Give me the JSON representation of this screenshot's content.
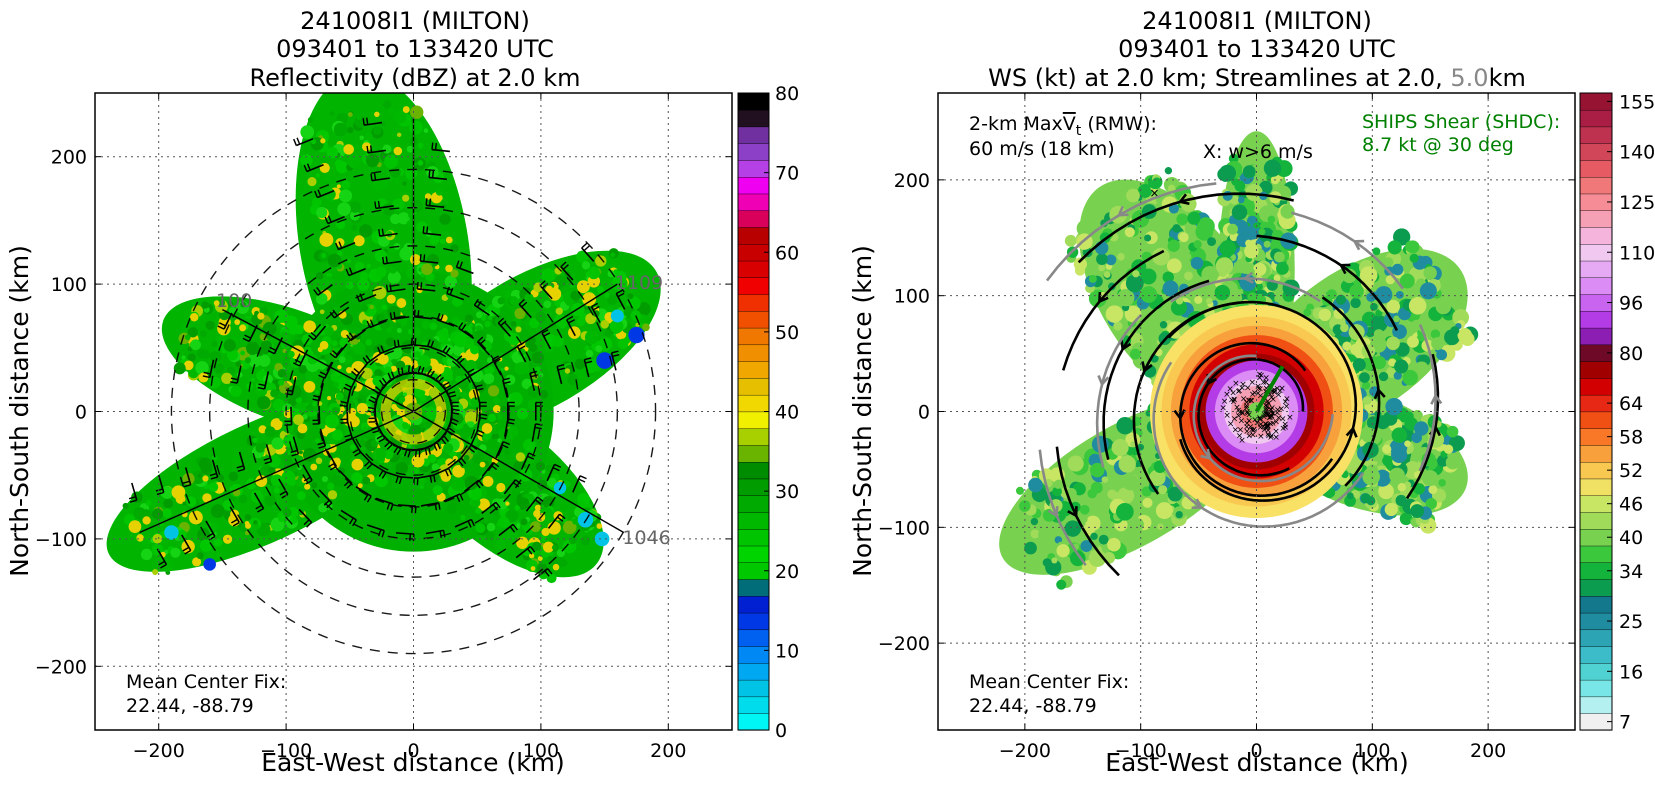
{
  "panels": [
    {
      "id": "reflectivity",
      "title_lines": [
        "241008I1 (MILTON)",
        "093401 to 133420 UTC",
        "Reflectivity (dBZ) at 2.0 km"
      ],
      "xlabel": "East-West distance (km)",
      "ylabel": "North-South distance (km)",
      "xlim": [
        -250,
        250
      ],
      "ylim": [
        -250,
        250
      ],
      "xticks": [
        -200,
        -100,
        0,
        100,
        200
      ],
      "yticks": [
        -200,
        -100,
        0,
        100,
        200
      ],
      "xtick_labels": [
        "−200",
        "−100",
        "0",
        "100",
        "200"
      ],
      "ytick_labels": [
        "−200",
        "−100",
        "0",
        "100",
        "200"
      ],
      "center_fix_lines": [
        "Mean Center Fix:",
        "22.44, -88.79"
      ],
      "flight_leg_labels": [
        {
          "text": "1109",
          "x": 158,
          "y": 96
        },
        {
          "text": "1046",
          "x": 164,
          "y": -104
        },
        {
          "text": "100",
          "x": -155,
          "y": 82
        }
      ],
      "colorbar": {
        "min": 0,
        "max": 80,
        "step": 2.5,
        "tick_values": [
          0,
          10,
          20,
          30,
          40,
          50,
          60,
          70,
          80
        ],
        "tick_labels": [
          "0",
          "10",
          "20",
          "30",
          "40",
          "50",
          "60",
          "70",
          "80"
        ],
        "colors": [
          "#00f5f5",
          "#00dcec",
          "#00c3e6",
          "#00a8f2",
          "#0088f5",
          "#0060f0",
          "#0038e6",
          "#0020d2",
          "#006d78",
          "#00c800",
          "#00d400",
          "#00c400",
          "#00b800",
          "#00aa00",
          "#009c00",
          "#008c00",
          "#6ab400",
          "#a8d000",
          "#f0f000",
          "#f0d800",
          "#e6c000",
          "#f0a800",
          "#f09000",
          "#f07800",
          "#f05000",
          "#f03000",
          "#f00000",
          "#d80000",
          "#c80000",
          "#b80000",
          "#d8005a",
          "#f000b4",
          "#f000f0",
          "#b440e6",
          "#8c40c8",
          "#7030a0",
          "#201020",
          "#000000"
        ]
      }
    },
    {
      "id": "windspeed",
      "title_lines": [
        "241008I1 (MILTON)",
        "093401 to 133420 UTC",
        "WS (kt) at 2.0 km; Streamlines at 2.0, 5.0km"
      ],
      "title_parts": {
        "prefix": "WS (kt) at 2.0 km; Streamlines at 2.0, ",
        "gray": "5.0",
        "suffix": "km"
      },
      "xlabel": "East-West distance (km)",
      "ylabel": "North-South distance (km)",
      "xlim": [
        -275,
        275
      ],
      "ylim": [
        -275,
        275
      ],
      "xticks": [
        -200,
        -100,
        0,
        100,
        200
      ],
      "yticks": [
        -200,
        -100,
        0,
        100,
        200
      ],
      "xtick_labels": [
        "−200",
        "−100",
        "0",
        "100",
        "200"
      ],
      "ytick_labels": [
        "−200",
        "−100",
        "0",
        "100",
        "200"
      ],
      "center_fix_lines": [
        "Mean Center Fix:",
        "22.44, -88.79"
      ],
      "maxvt_lines": [
        "2-km MaxV̅t (RMW):",
        "60 m/s (18 km)"
      ],
      "maxvt_line1_parts": {
        "prefix": "2-km Max",
        "symbol": "V",
        "subscript": "t",
        "suffix": " (RMW):"
      },
      "x_marker_text": "X: w>6 m/s",
      "ships_lines": [
        "SHIPS Shear (SHDC):",
        "8.7 kt @ 30 deg"
      ],
      "ships_color": "#008000",
      "colorbar": {
        "boundaries": [
          7,
          10,
          13,
          16,
          19,
          22,
          25,
          28,
          31,
          34,
          37,
          40,
          43,
          46,
          49,
          52,
          55,
          58,
          61,
          64,
          70,
          75,
          80,
          86,
          91,
          96,
          101,
          106,
          110,
          115,
          120,
          125,
          130,
          135,
          140,
          145,
          150,
          155,
          160
        ],
        "tick_values": [
          7,
          16,
          25,
          34,
          40,
          46,
          52,
          58,
          64,
          80,
          96,
          110,
          125,
          140,
          155
        ],
        "tick_labels": [
          "7",
          "16",
          "25",
          "34",
          "40",
          "46",
          "52",
          "58",
          "64",
          "80",
          "96",
          "110",
          "125",
          "140",
          "155"
        ],
        "colors": [
          "#f0f0f0",
          "#b4f0f0",
          "#78e6e6",
          "#50d2d2",
          "#3cbcc8",
          "#2ca4b4",
          "#208ca0",
          "#14788c",
          "#0c9c50",
          "#14b43c",
          "#3cc83c",
          "#78d250",
          "#a0dc5a",
          "#c8e664",
          "#f0e164",
          "#f8c850",
          "#f8a03c",
          "#f87828",
          "#f05014",
          "#e62814",
          "#d20000",
          "#a00000",
          "#6e0a28",
          "#8c1eb4",
          "#b43ce6",
          "#c864f0",
          "#dc8cf5",
          "#e6aaf5",
          "#f0c8f0",
          "#f5b4dc",
          "#f5a0b4",
          "#f58c96",
          "#f07878",
          "#e65a64",
          "#d2465a",
          "#be3250",
          "#aa1e46",
          "#961432"
        ]
      }
    }
  ]
}
